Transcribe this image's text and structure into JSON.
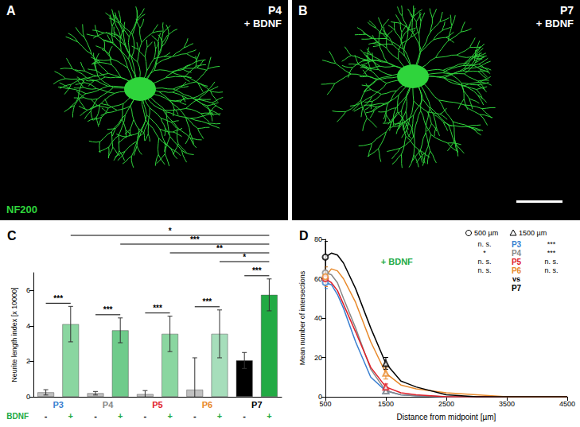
{
  "images": [
    {
      "panel": "A",
      "age": "P4",
      "condition": "+ BDNF",
      "stain": "NF200"
    },
    {
      "panel": "B",
      "age": "P7",
      "condition": "+ BDNF",
      "scale_bar": true
    }
  ],
  "chart_data": [
    {
      "panel": "C",
      "type": "bar",
      "grid": false,
      "categories": [
        "P3",
        "P4",
        "P5",
        "P6",
        "P7"
      ],
      "category_colors": [
        "#3a7fd0",
        "#888888",
        "#e0202a",
        "#e8892a",
        "#000000"
      ],
      "y_label": "Neurite length index [x 10000]",
      "ylim": [
        0,
        7
      ],
      "yticks": [
        0,
        2,
        4,
        6
      ],
      "series_label": "BDNF",
      "series": [
        {
          "name": "-",
          "name_color": "#000000",
          "colors": [
            "#c0c0c0",
            "#c0c0c0",
            "#c0c0c0",
            "#c0c0c0",
            "#000000"
          ],
          "values": [
            0.25,
            0.2,
            0.15,
            0.4,
            2.05
          ],
          "errors": [
            0.15,
            0.1,
            0.2,
            1.8,
            0.45
          ]
        },
        {
          "name": "+",
          "name_color": "#22aa44",
          "colors": [
            "#8ad6a0",
            "#6fcb8b",
            "#8ad6a0",
            "#a6debb",
            "#22aa44"
          ],
          "values": [
            4.1,
            3.75,
            3.55,
            3.55,
            5.75
          ],
          "errors": [
            1.0,
            0.7,
            1.0,
            1.35,
            0.9
          ]
        }
      ],
      "within_group_labels": [
        "***",
        "***",
        "***",
        "***",
        "***"
      ],
      "comparisons": [
        {
          "from": "P3",
          "to": "P7",
          "label": "*"
        },
        {
          "from": "P4",
          "to": "P7",
          "label": "***"
        },
        {
          "from": "P5",
          "to": "P7",
          "label": "**"
        },
        {
          "from": "P6",
          "to": "P7",
          "label": "*"
        }
      ]
    },
    {
      "panel": "D",
      "type": "line",
      "grid": false,
      "x": [
        500,
        600,
        700,
        800,
        1000,
        1250,
        1500,
        1750,
        2000,
        2500,
        3000,
        3500,
        4000,
        4500
      ],
      "xlim": [
        500,
        4500
      ],
      "xticks": [
        500,
        1500,
        2500,
        3500,
        4500
      ],
      "ylim": [
        0,
        80
      ],
      "yticks": [
        0,
        20,
        40,
        60,
        80
      ],
      "x_label": "Distance from midpoint [µm]",
      "y_label": "Mean number of intersections",
      "annotation": "+ BDNF",
      "series": [
        {
          "name": "P3",
          "color": "#3a7fd0",
          "values": [
            58,
            57,
            52,
            45,
            28,
            10,
            3,
            1,
            0.5,
            0,
            0,
            0,
            0,
            0
          ],
          "errors": [
            3,
            null,
            null,
            null,
            null,
            null,
            1,
            null,
            null,
            null,
            null,
            null,
            null,
            null
          ]
        },
        {
          "name": "P4",
          "color": "#888888",
          "values": [
            63,
            62,
            58,
            50,
            35,
            14,
            3,
            1,
            0.5,
            0,
            0,
            0,
            0,
            0
          ],
          "errors": [
            3,
            null,
            null,
            null,
            null,
            null,
            1,
            null,
            null,
            null,
            null,
            null,
            null,
            null
          ]
        },
        {
          "name": "P5",
          "color": "#e0202a",
          "values": [
            60,
            58,
            54,
            47,
            33,
            15,
            5,
            2,
            1,
            0,
            0,
            0,
            0,
            0
          ],
          "errors": [
            4,
            null,
            null,
            null,
            null,
            null,
            1.5,
            null,
            null,
            null,
            null,
            null,
            null,
            null
          ]
        },
        {
          "name": "P6",
          "color": "#e8892a",
          "values": [
            61,
            65,
            64,
            60,
            48,
            28,
            12,
            6,
            4,
            2,
            1,
            0,
            0,
            0
          ],
          "errors": [
            5,
            null,
            null,
            null,
            null,
            null,
            3,
            null,
            null,
            null,
            null,
            null,
            null,
            null
          ]
        },
        {
          "name": "P7",
          "color": "#000000",
          "values": [
            71,
            73,
            72,
            68,
            55,
            35,
            17,
            8,
            5,
            1,
            0,
            0,
            0,
            0
          ],
          "errors": [
            8,
            null,
            null,
            null,
            null,
            null,
            3,
            null,
            null,
            null,
            null,
            null,
            null,
            null
          ]
        }
      ],
      "marker_points": [
        {
          "x": 500,
          "marker": "circle",
          "label": "500 µm"
        },
        {
          "x": 1500,
          "marker": "triangle",
          "label": "1500 µm"
        }
      ],
      "stats": {
        "rows": [
          {
            "name": "P3",
            "at_500": "n. s.",
            "at_1500": "***"
          },
          {
            "name": "P4",
            "at_500": "*",
            "at_1500": "***"
          },
          {
            "name": "P5",
            "at_500": "n. s.",
            "at_1500": "n. s."
          },
          {
            "name": "P6",
            "at_500": "n. s.",
            "at_1500": "n. s."
          }
        ],
        "vs": "vs",
        "reference": "P7"
      }
    }
  ]
}
